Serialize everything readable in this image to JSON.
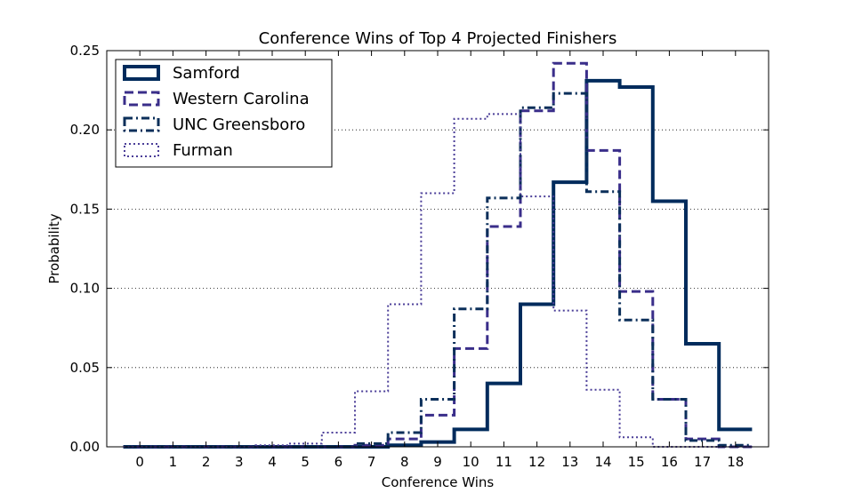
{
  "chart_data": {
    "type": "step-histogram",
    "title": "Conference Wins of Top 4 Projected Finishers",
    "xlabel": "Conference Wins",
    "ylabel": "Probability",
    "xlim": [
      -1,
      19
    ],
    "ylim": [
      0,
      0.25
    ],
    "xticks": [
      0,
      1,
      2,
      3,
      4,
      5,
      6,
      7,
      8,
      9,
      10,
      11,
      12,
      13,
      14,
      15,
      16,
      17,
      18
    ],
    "yticks": [
      0.0,
      0.05,
      0.1,
      0.15,
      0.2,
      0.25
    ],
    "ytick_labels": [
      "0.00",
      "0.05",
      "0.10",
      "0.15",
      "0.20",
      "0.25"
    ],
    "grid": "horizontal dotted",
    "legend_position": "top-left",
    "categories": [
      0,
      1,
      2,
      3,
      4,
      5,
      6,
      7,
      8,
      9,
      10,
      11,
      12,
      13,
      14,
      15,
      16,
      17,
      18
    ],
    "series": [
      {
        "name": "Samford",
        "color": "#002b5c",
        "line_style": "solid",
        "values": [
          0,
          0,
          0,
          0,
          0,
          0,
          0,
          0,
          0.001,
          0.003,
          0.011,
          0.04,
          0.09,
          0.167,
          0.231,
          0.227,
          0.155,
          0.065,
          0.011
        ]
      },
      {
        "name": "Western Carolina",
        "color": "#3a2e8a",
        "line_style": "dashed",
        "values": [
          0,
          0,
          0,
          0,
          0,
          0,
          0,
          0.001,
          0.005,
          0.02,
          0.062,
          0.139,
          0.212,
          0.242,
          0.187,
          0.098,
          0.03,
          0.005,
          0
        ]
      },
      {
        "name": "UNC Greensboro",
        "color": "#0b2f5a",
        "line_style": "dashdot",
        "values": [
          0,
          0,
          0,
          0,
          0,
          0,
          0,
          0.002,
          0.009,
          0.03,
          0.087,
          0.157,
          0.214,
          0.223,
          0.161,
          0.08,
          0.03,
          0.004,
          0.001
        ]
      },
      {
        "name": "Furman",
        "color": "#4b3e98",
        "line_style": "dotted",
        "values": [
          0,
          0,
          0,
          0,
          0.001,
          0.002,
          0.009,
          0.035,
          0.09,
          0.16,
          0.207,
          0.21,
          0.158,
          0.086,
          0.036,
          0.006,
          0,
          0,
          0
        ]
      }
    ]
  }
}
